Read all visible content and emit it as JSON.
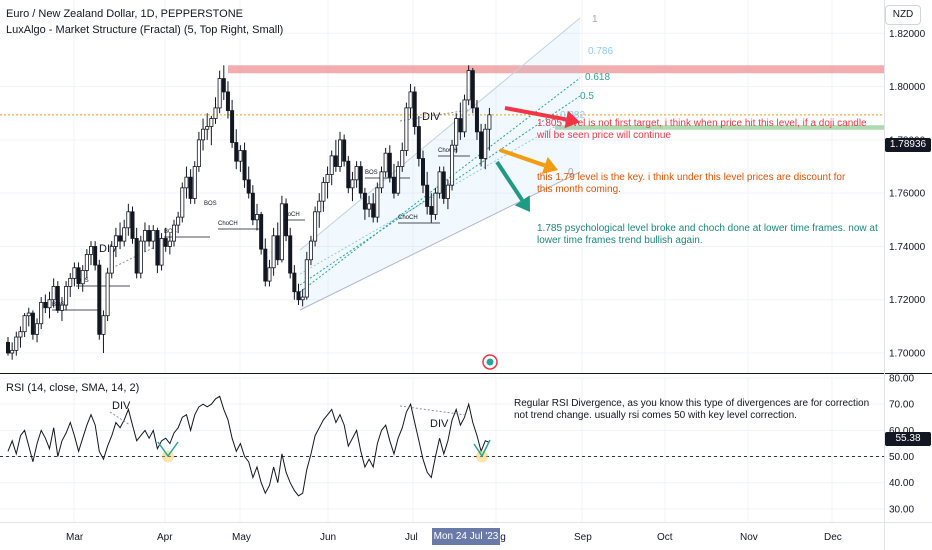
{
  "header": {
    "title": "Euro / New Zealand Dollar, 1D, PEPPERSTONE",
    "indicator": "LuxAlgo - Market Structure (Fractal) (5, Top Right, Small)",
    "currency": "NZD"
  },
  "colors": {
    "up": "#131722",
    "down": "#131722",
    "resistance_zone": "#ef9a9a",
    "support_zone": "#a5d6a7",
    "orange_line": "#f39c12",
    "fib_blue": "#90caf9",
    "fib_teal": "#26a69a",
    "note_red": "#f23645",
    "note_orange": "#e65100",
    "note_teal": "#1a8a7a",
    "rsi_line": "#131722",
    "rsi_marker": "#f5c542"
  },
  "chart_data": [
    {
      "type": "candlestick",
      "yaxis_ticks": [
        "1.82000",
        "1.80000",
        "1.78000",
        "1.76000",
        "1.74000",
        "1.72000",
        "1.70000"
      ],
      "ylim": [
        1.6925,
        1.8325
      ],
      "xaxis_ticks": [
        "Mar",
        "Apr",
        "May",
        "Jun",
        "Jul",
        "Aug",
        "Sep",
        "Oct",
        "Nov",
        "Dec"
      ],
      "current_price": "1.78936",
      "candles": [
        [
          1.704,
          1.706,
          1.699,
          1.7
        ],
        [
          1.7,
          1.704,
          1.6975,
          1.701
        ],
        [
          1.701,
          1.708,
          1.699,
          1.706
        ],
        [
          1.706,
          1.71,
          1.702,
          1.708
        ],
        [
          1.708,
          1.715,
          1.706,
          1.714
        ],
        [
          1.714,
          1.717,
          1.71,
          1.715
        ],
        [
          1.715,
          1.716,
          1.705,
          1.707
        ],
        [
          1.707,
          1.713,
          1.704,
          1.711
        ],
        [
          1.711,
          1.721,
          1.709,
          1.719
        ],
        [
          1.719,
          1.722,
          1.715,
          1.717
        ],
        [
          1.717,
          1.723,
          1.713,
          1.72
        ],
        [
          1.72,
          1.728,
          1.717,
          1.725
        ],
        [
          1.725,
          1.727,
          1.715,
          1.716
        ],
        [
          1.716,
          1.721,
          1.712,
          1.718
        ],
        [
          1.718,
          1.727,
          1.716,
          1.725
        ],
        [
          1.725,
          1.73,
          1.721,
          1.728
        ],
        [
          1.728,
          1.734,
          1.725,
          1.732
        ],
        [
          1.732,
          1.734,
          1.724,
          1.726
        ],
        [
          1.726,
          1.733,
          1.723,
          1.731
        ],
        [
          1.731,
          1.739,
          1.728,
          1.737
        ],
        [
          1.737,
          1.742,
          1.733,
          1.74
        ],
        [
          1.74,
          1.742,
          1.731,
          1.733
        ],
        [
          1.733,
          1.735,
          1.705,
          1.707
        ],
        [
          1.707,
          1.716,
          1.7,
          1.714
        ],
        [
          1.714,
          1.732,
          1.712,
          1.73
        ],
        [
          1.73,
          1.742,
          1.728,
          1.74
        ],
        [
          1.74,
          1.747,
          1.736,
          1.744
        ],
        [
          1.744,
          1.749,
          1.739,
          1.742
        ],
        [
          1.742,
          1.75,
          1.74,
          1.747
        ],
        [
          1.747,
          1.756,
          1.744,
          1.753
        ],
        [
          1.753,
          1.755,
          1.741,
          1.743
        ],
        [
          1.743,
          1.747,
          1.728,
          1.73
        ],
        [
          1.73,
          1.744,
          1.728,
          1.742
        ],
        [
          1.742,
          1.749,
          1.738,
          1.746
        ],
        [
          1.746,
          1.748,
          1.74,
          1.742
        ],
        [
          1.742,
          1.748,
          1.739,
          1.746
        ],
        [
          1.746,
          1.747,
          1.73,
          1.733
        ],
        [
          1.733,
          1.745,
          1.731,
          1.743
        ],
        [
          1.743,
          1.747,
          1.738,
          1.74
        ],
        [
          1.74,
          1.745,
          1.737,
          1.742
        ],
        [
          1.742,
          1.75,
          1.74,
          1.748
        ],
        [
          1.748,
          1.753,
          1.745,
          1.751
        ],
        [
          1.751,
          1.764,
          1.749,
          1.762
        ],
        [
          1.762,
          1.77,
          1.758,
          1.766
        ],
        [
          1.766,
          1.769,
          1.756,
          1.758
        ],
        [
          1.758,
          1.772,
          1.756,
          1.77
        ],
        [
          1.77,
          1.783,
          1.768,
          1.78
        ],
        [
          1.78,
          1.788,
          1.776,
          1.784
        ],
        [
          1.784,
          1.79,
          1.78,
          1.785
        ],
        [
          1.785,
          1.789,
          1.778,
          1.788
        ],
        [
          1.788,
          1.796,
          1.786,
          1.792
        ],
        [
          1.792,
          1.806,
          1.79,
          1.803
        ],
        [
          1.803,
          1.808,
          1.795,
          1.798
        ],
        [
          1.798,
          1.802,
          1.788,
          1.791
        ],
        [
          1.791,
          1.795,
          1.777,
          1.779
        ],
        [
          1.779,
          1.784,
          1.769,
          1.772
        ],
        [
          1.772,
          1.778,
          1.768,
          1.776
        ],
        [
          1.776,
          1.779,
          1.762,
          1.765
        ],
        [
          1.765,
          1.77,
          1.758,
          1.76
        ],
        [
          1.76,
          1.763,
          1.748,
          1.75
        ],
        [
          1.75,
          1.756,
          1.746,
          1.752
        ],
        [
          1.752,
          1.753,
          1.737,
          1.739
        ],
        [
          1.739,
          1.743,
          1.725,
          1.727
        ],
        [
          1.727,
          1.735,
          1.725,
          1.732
        ],
        [
          1.732,
          1.747,
          1.729,
          1.744
        ],
        [
          1.744,
          1.749,
          1.733,
          1.735
        ],
        [
          1.735,
          1.759,
          1.734,
          1.756
        ],
        [
          1.756,
          1.758,
          1.742,
          1.744
        ],
        [
          1.744,
          1.747,
          1.728,
          1.73
        ],
        [
          1.73,
          1.733,
          1.72,
          1.723
        ],
        [
          1.723,
          1.726,
          1.718,
          1.72
        ],
        [
          1.72,
          1.724,
          1.7175,
          1.721
        ],
        [
          1.721,
          1.738,
          1.72,
          1.735
        ],
        [
          1.735,
          1.744,
          1.733,
          1.742
        ],
        [
          1.742,
          1.755,
          1.74,
          1.753
        ],
        [
          1.753,
          1.76,
          1.747,
          1.757
        ],
        [
          1.757,
          1.766,
          1.753,
          1.764
        ],
        [
          1.764,
          1.77,
          1.758,
          1.767
        ],
        [
          1.767,
          1.776,
          1.763,
          1.774
        ],
        [
          1.774,
          1.78,
          1.768,
          1.77
        ],
        [
          1.77,
          1.783,
          1.768,
          1.78
        ],
        [
          1.78,
          1.782,
          1.77,
          1.772
        ],
        [
          1.772,
          1.774,
          1.76,
          1.762
        ],
        [
          1.762,
          1.768,
          1.757,
          1.765
        ],
        [
          1.765,
          1.772,
          1.762,
          1.77
        ],
        [
          1.77,
          1.772,
          1.758,
          1.76
        ],
        [
          1.76,
          1.762,
          1.75,
          1.754
        ],
        [
          1.754,
          1.759,
          1.751,
          1.756
        ],
        [
          1.756,
          1.76,
          1.749,
          1.751
        ],
        [
          1.751,
          1.764,
          1.749,
          1.762
        ],
        [
          1.762,
          1.77,
          1.76,
          1.768
        ],
        [
          1.768,
          1.777,
          1.766,
          1.775
        ],
        [
          1.775,
          1.778,
          1.764,
          1.766
        ],
        [
          1.766,
          1.771,
          1.758,
          1.76
        ],
        [
          1.76,
          1.772,
          1.759,
          1.77
        ],
        [
          1.77,
          1.779,
          1.768,
          1.776
        ],
        [
          1.776,
          1.794,
          1.774,
          1.792
        ],
        [
          1.792,
          1.801,
          1.788,
          1.798
        ],
        [
          1.798,
          1.8,
          1.782,
          1.785
        ],
        [
          1.785,
          1.789,
          1.77,
          1.773
        ],
        [
          1.773,
          1.776,
          1.76,
          1.763
        ],
        [
          1.763,
          1.768,
          1.752,
          1.755
        ],
        [
          1.755,
          1.76,
          1.749,
          1.752
        ],
        [
          1.752,
          1.762,
          1.75,
          1.76
        ],
        [
          1.76,
          1.77,
          1.758,
          1.768
        ],
        [
          1.768,
          1.77,
          1.756,
          1.758
        ],
        [
          1.758,
          1.765,
          1.754,
          1.763
        ],
        [
          1.763,
          1.78,
          1.761,
          1.778
        ],
        [
          1.778,
          1.79,
          1.775,
          1.788
        ],
        [
          1.788,
          1.794,
          1.78,
          1.783
        ],
        [
          1.783,
          1.797,
          1.781,
          1.795
        ],
        [
          1.795,
          1.808,
          1.793,
          1.806
        ],
        [
          1.806,
          1.807,
          1.79,
          1.792
        ],
        [
          1.792,
          1.795,
          1.78,
          1.783
        ],
        [
          1.783,
          1.786,
          1.77,
          1.773
        ],
        [
          1.773,
          1.786,
          1.769,
          1.784
        ],
        [
          1.784,
          1.792,
          1.776,
          1.7894
        ]
      ]
    },
    {
      "type": "line",
      "name": "RSI (14, close, SMA, 14, 2)",
      "yaxis_ticks": [
        "80.00",
        "70.00",
        "60.00",
        "50.00",
        "40.00",
        "30.00"
      ],
      "ylim": [
        25,
        80
      ],
      "current_value": "55.38",
      "values": [
        52,
        56,
        51,
        58,
        60,
        54,
        48,
        55,
        60,
        57,
        53,
        61,
        50,
        56,
        59,
        63,
        58,
        52,
        57,
        62,
        66,
        62,
        52,
        49,
        54,
        58,
        63,
        61,
        64,
        68,
        62,
        56,
        58,
        60,
        57,
        60,
        53,
        56,
        57,
        55,
        59,
        61,
        65,
        66,
        60,
        66,
        69,
        70,
        69,
        70,
        72,
        73,
        68,
        64,
        57,
        52,
        55,
        50,
        48,
        42,
        46,
        40,
        36,
        39,
        46,
        40,
        51,
        44,
        40,
        37,
        35,
        36,
        45,
        51,
        58,
        61,
        64,
        66,
        68,
        63,
        66,
        62,
        54,
        57,
        60,
        52,
        46,
        49,
        46,
        55,
        60,
        62,
        56,
        51,
        57,
        61,
        67,
        70,
        63,
        56,
        49,
        44,
        42,
        50,
        57,
        51,
        56,
        64,
        68,
        62,
        65,
        70,
        63,
        58,
        52,
        56,
        55.4
      ],
      "reference_level": "50.00"
    }
  ],
  "fib_levels": [
    {
      "label": "1",
      "price": 1.833
    },
    {
      "label": "0.786",
      "price": 1.82
    },
    {
      "label": "0.618",
      "price": 1.809
    },
    {
      "label": "0.5",
      "price": 1.802
    },
    {
      "label": "0.382",
      "price": 1.795
    },
    {
      "label": "0",
      "price": 1.772
    }
  ],
  "chart_labels": {
    "bos": "BOS",
    "choch": "ChoCH",
    "div": "DIV"
  },
  "notes": {
    "red": "1.805 level is not first target, i think when price hit this level, if a doji candle will be seen price will continue",
    "orange": "this 1.79 level is the key. i think under this level prices are discount for this month coming.",
    "teal": "1.785 psychological level broke and choch done at lower time frames. now at lower time frames trend bullish again.",
    "rsi": "Regular RSI Divergence, as you know this type of divergences are for correction not trend change. usually rsi comes 50 with key level correction."
  },
  "cursor_date": "Mon 24 Jul '23"
}
